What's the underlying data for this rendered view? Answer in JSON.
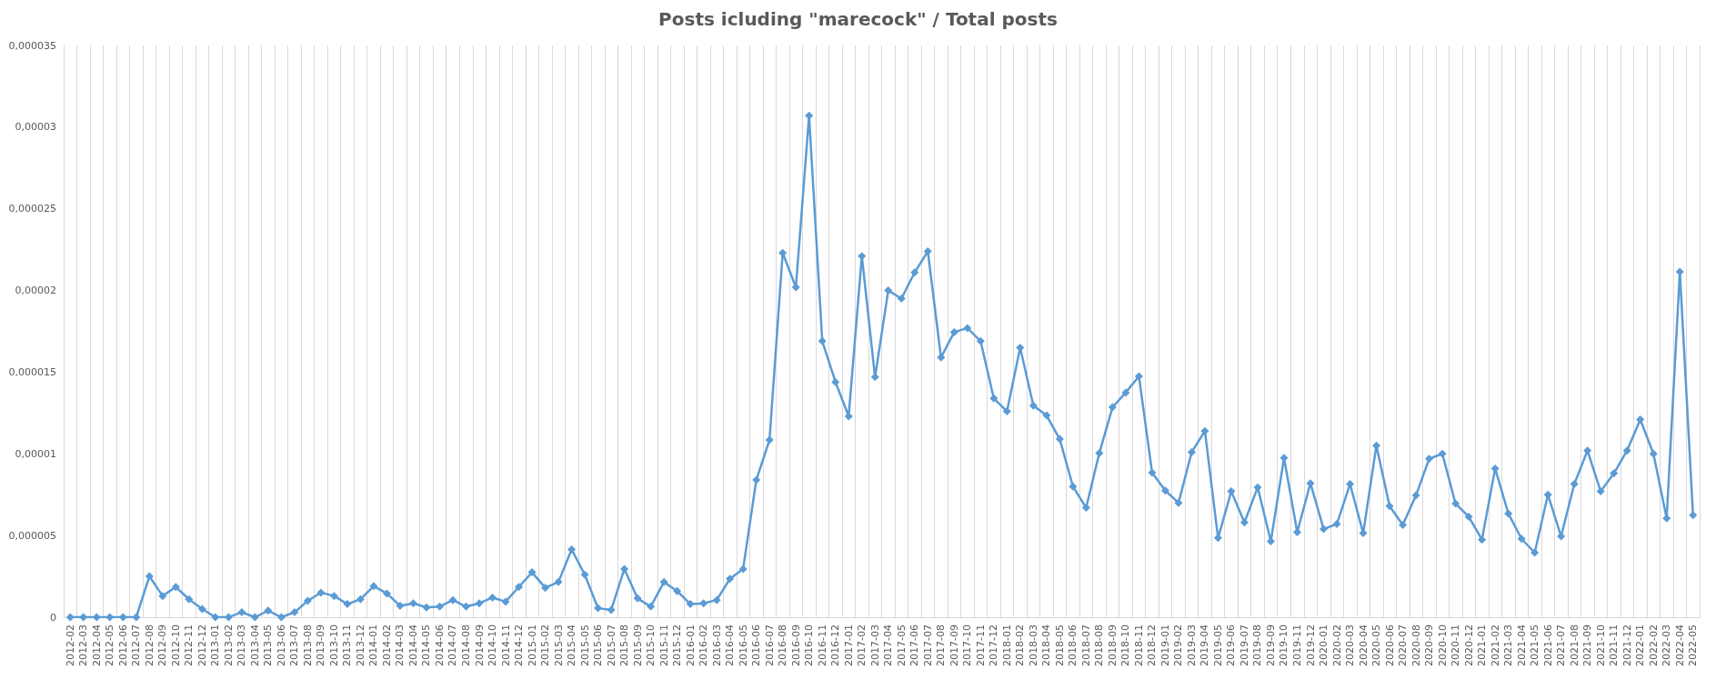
{
  "chart_data": {
    "type": "line",
    "title": "Posts icluding \"marecock\" / Total posts",
    "categories": [
      "2012-02",
      "2012-03",
      "2012-04",
      "2012-05",
      "2012-06",
      "2012-07",
      "2012-08",
      "2012-09",
      "2012-10",
      "2012-11",
      "2012-12",
      "2013-01",
      "2013-02",
      "2013-03",
      "2013-04",
      "2013-05",
      "2013-06",
      "2013-07",
      "2013-08",
      "2013-09",
      "2013-10",
      "2013-11",
      "2013-12",
      "2014-01",
      "2014-02",
      "2014-03",
      "2014-04",
      "2014-05",
      "2014-06",
      "2014-07",
      "2014-08",
      "2014-09",
      "2014-10",
      "2014-11",
      "2014-12",
      "2015-01",
      "2015-02",
      "2015-03",
      "2015-04",
      "2015-05",
      "2015-06",
      "2015-07",
      "2015-08",
      "2015-09",
      "2015-10",
      "2015-11",
      "2015-12",
      "2016-01",
      "2016-02",
      "2016-03",
      "2016-04",
      "2016-05",
      "2016-06",
      "2016-07",
      "2016-08",
      "2016-09",
      "2016-10",
      "2016-11",
      "2016-12",
      "2017-01",
      "2017-02",
      "2017-03",
      "2017-04",
      "2017-05",
      "2017-06",
      "2017-07",
      "2017-08",
      "2017-09",
      "2017-10",
      "2017-11",
      "2017-12",
      "2018-01",
      "2018-02",
      "2018-03",
      "2018-04",
      "2018-05",
      "2018-06",
      "2018-07",
      "2018-08",
      "2018-09",
      "2018-10",
      "2018-11",
      "2018-12",
      "2019-01",
      "2019-02",
      "2019-03",
      "2019-04",
      "2019-05",
      "2019-06",
      "2019-07",
      "2019-08",
      "2019-09",
      "2019-10",
      "2019-11",
      "2019-12",
      "2020-01",
      "2020-02",
      "2020-03",
      "2020-04",
      "2020-05",
      "2020-06",
      "2020-07",
      "2020-08",
      "2020-09",
      "2020-10",
      "2020-11",
      "2020-12",
      "2021-01",
      "2021-02",
      "2021-03",
      "2021-04",
      "2021-05",
      "2021-06",
      "2021-07",
      "2021-08",
      "2021-09",
      "2021-10",
      "2021-11",
      "2021-12",
      "2022-01",
      "2022-02",
      "2022-03",
      "2022-04",
      "2022-05"
    ],
    "series": [
      {
        "color": "#5b9bd5",
        "values": [
          0,
          0,
          0,
          0,
          0,
          0,
          2.5e-06,
          1.3e-06,
          1.85e-06,
          1.1e-06,
          5e-07,
          0,
          0,
          3e-07,
          0,
          4e-07,
          0,
          3e-07,
          1e-06,
          1.5e-06,
          1.3e-06,
          8e-07,
          1.1e-06,
          1.9e-06,
          1.45e-06,
          7e-07,
          8.5e-07,
          6e-07,
          6.5e-07,
          1.05e-06,
          6.5e-07,
          8.5e-07,
          1.2e-06,
          9.5e-07,
          1.85e-06,
          2.75e-06,
          1.8e-06,
          2.15e-06,
          4.15e-06,
          2.6e-06,
          5.5e-07,
          4.5e-07,
          2.95e-06,
          1.15e-06,
          6.5e-07,
          2.15e-06,
          1.6e-06,
          8e-07,
          8.5e-07,
          1.05e-06,
          2.35e-06,
          2.95e-06,
          8.4e-06,
          1.085e-05,
          2.23e-05,
          2.02e-05,
          3.07e-05,
          1.69e-05,
          1.44e-05,
          1.23e-05,
          2.21e-05,
          1.47e-05,
          2e-05,
          1.95e-05,
          2.11e-05,
          2.24e-05,
          1.59e-05,
          1.745e-05,
          1.77e-05,
          1.69e-05,
          1.34e-05,
          1.26e-05,
          1.65e-05,
          1.295e-05,
          1.235e-05,
          1.09e-05,
          8e-06,
          6.7e-06,
          1.005e-05,
          1.285e-05,
          1.375e-05,
          1.475e-05,
          8.85e-06,
          7.75e-06,
          7e-06,
          1.01e-05,
          1.14e-05,
          4.85e-06,
          7.7e-06,
          5.8e-06,
          7.95e-06,
          4.65e-06,
          9.75e-06,
          5.2e-06,
          8.2e-06,
          5.4e-06,
          5.7e-06,
          8.15e-06,
          5.15e-06,
          1.05e-05,
          6.8e-06,
          5.65e-06,
          7.45e-06,
          9.7e-06,
          1e-05,
          6.95e-06,
          6.15e-06,
          4.75e-06,
          9.1e-06,
          6.35e-06,
          4.8e-06,
          3.95e-06,
          7.5e-06,
          4.95e-06,
          8.15e-06,
          1.02e-05,
          7.7e-06,
          8.8e-06,
          1.02e-05,
          1.21e-05,
          1e-05,
          6.05e-06,
          2.115e-05,
          6.25e-06
        ]
      }
    ],
    "ylim": [
      0,
      3.5e-05
    ],
    "yticks": [
      0,
      {
        "value": 5e-06,
        "label": "0,000005"
      },
      {
        "value": 1e-05,
        "label": "0,00001"
      },
      {
        "value": 1.5e-05,
        "label": "0,000015"
      },
      {
        "value": 2e-05,
        "label": "0,00002"
      },
      {
        "value": 2.5e-05,
        "label": "0,000025"
      },
      {
        "value": 3e-05,
        "label": "0,00003"
      },
      {
        "value": 3.5e-05,
        "label": "0,000035"
      }
    ],
    "grid": "x",
    "marker": "diamond",
    "line_style": "solid"
  }
}
